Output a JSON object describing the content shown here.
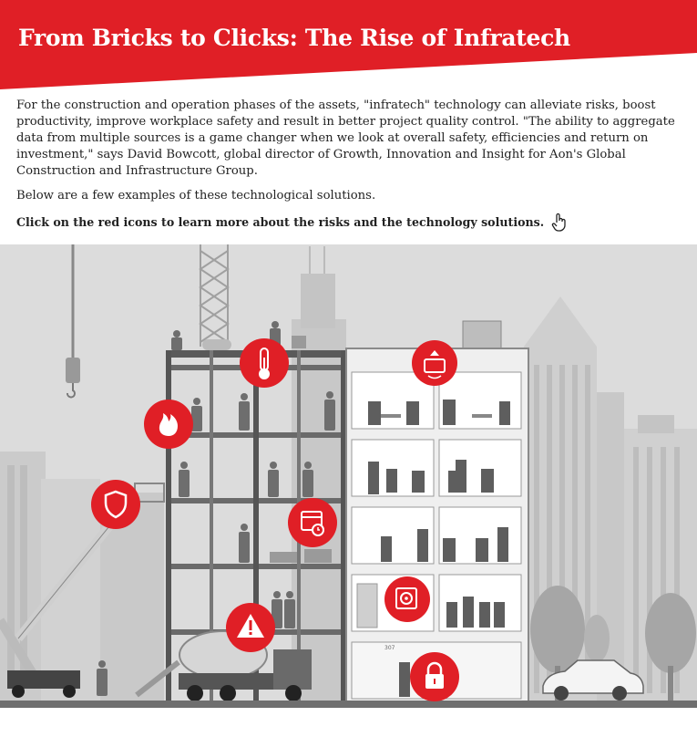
{
  "header": {
    "title": "From Bricks to Clicks: The Rise of Infratech",
    "accent_color": "#E01F26"
  },
  "intro": {
    "paragraph1": "For the construction and operation phases of the assets, \"infratech\" technology can  alleviate risks, boost productivity, improve workplace safety and result in better project quality control. \"The ability to aggregate data from multiple sources is a game changer when we look at overall safety, efficiencies and return on investment,\" says David Bowcott, global director of Growth, Innovation and Insight for Aon's Global Construction and Infrastructure Group.",
    "paragraph2": "Below are a few examples of these technological solutions.",
    "cta": "Click on the red icons to learn more about the risks and the technology solutions."
  },
  "hotspots": [
    {
      "icon": "thermometer-icon"
    },
    {
      "icon": "fire-icon"
    },
    {
      "icon": "shield-icon"
    },
    {
      "icon": "calendar-clock-icon"
    },
    {
      "icon": "warning-icon"
    },
    {
      "icon": "smart-meter-icon"
    },
    {
      "icon": "fan-unit-icon"
    },
    {
      "icon": "padlock-icon"
    }
  ],
  "illustration": {
    "sign_label": "307"
  }
}
